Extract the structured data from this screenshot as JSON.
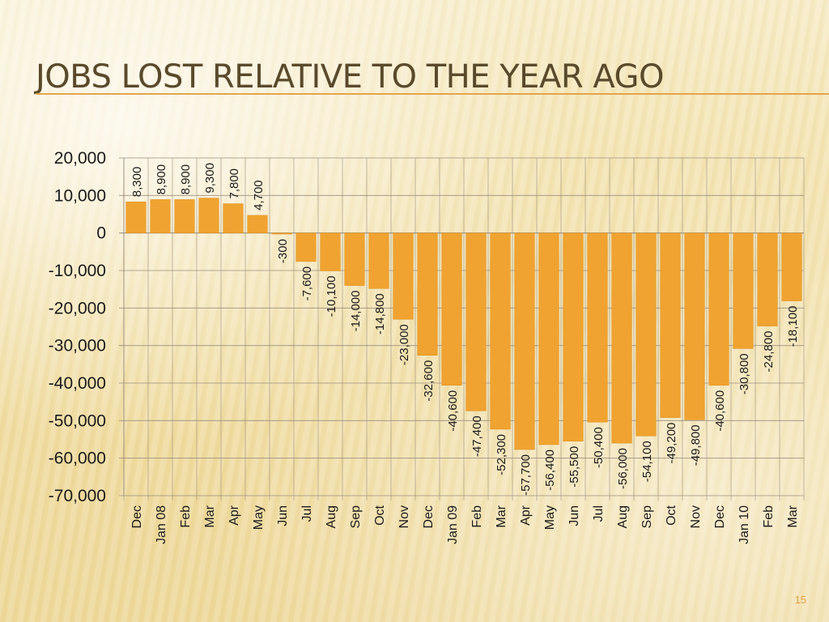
{
  "slide": {
    "title": "Jobs Lost Relative to the Year Ago",
    "page_number": "15"
  },
  "colors": {
    "bar": "#f0a330",
    "bar_edge": "#d98e1e",
    "title_rule": "#e5a44a",
    "grid": "#9c9080",
    "text": "#1a1a1a"
  },
  "chart_data": {
    "type": "bar",
    "title": "",
    "xlabel": "",
    "ylabel": "",
    "ylim": [
      -70000,
      20000
    ],
    "yticks": [
      20000,
      10000,
      0,
      -10000,
      -20000,
      -30000,
      -40000,
      -50000,
      -60000,
      -70000
    ],
    "ytick_labels": [
      "20,000",
      "10,000",
      "0",
      "-10,000",
      "-20,000",
      "-30,000",
      "-40,000",
      "-50,000",
      "-60,000",
      "-70,000"
    ],
    "grid": true,
    "legend": "none",
    "categories": [
      "Dec",
      "Jan 08",
      "Feb",
      "Mar",
      "Apr",
      "May",
      "Jun",
      "Jul",
      "Aug",
      "Sep",
      "Oct",
      "Nov",
      "Dec",
      "Jan 09",
      "Feb",
      "Mar",
      "Apr",
      "May",
      "Jun",
      "Jul",
      "Aug",
      "Sep",
      "Oct",
      "Nov",
      "Dec",
      "Jan 10",
      "Feb",
      "Mar"
    ],
    "values": [
      8300,
      8900,
      8900,
      9300,
      7800,
      4700,
      -300,
      -7600,
      -10100,
      -14000,
      -14800,
      -23000,
      -32600,
      -40600,
      -47400,
      -52300,
      -57700,
      -56400,
      -55500,
      -50400,
      -56000,
      -54100,
      -49200,
      -49800,
      -40600,
      -30800,
      -24800,
      -18100
    ],
    "data_labels": [
      "8,300",
      "8,900",
      "8,900",
      "9,300",
      "7,800",
      "4,700",
      "-300",
      "-7,600",
      "-10,100",
      "-14,000",
      "-14,800",
      "-23,000",
      "-32,600",
      "-40,600",
      "-47,400",
      "-52,300",
      "-57,700",
      "-56,400",
      "-55,500",
      "-50,400",
      "-56,000",
      "-54,100",
      "-49,200",
      "-49,800",
      "-40,600",
      "-30,800",
      "-24,800",
      "-18,100"
    ]
  }
}
